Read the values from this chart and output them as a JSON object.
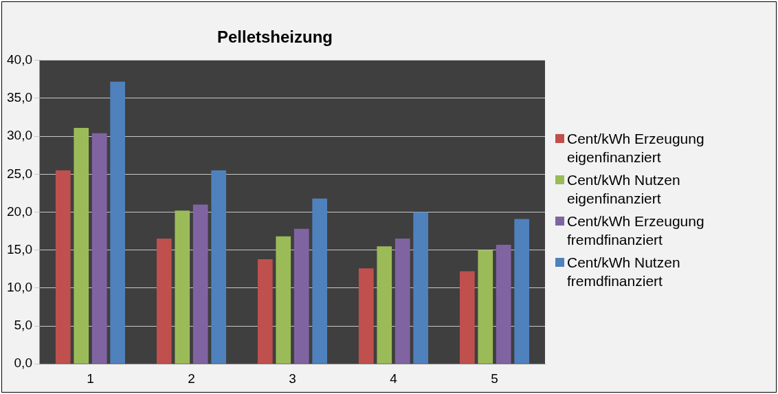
{
  "chart_data": {
    "type": "bar",
    "title": "Pelletsheizung",
    "categories": [
      "1",
      "2",
      "3",
      "4",
      "5"
    ],
    "series": [
      {
        "name": "Cent/kWh Erzeugung eigenfinanziert",
        "color": "#c0504d",
        "values": [
          25.5,
          16.5,
          13.8,
          12.6,
          12.2
        ]
      },
      {
        "name": "Cent/kWh Nutzen eigenfinanziert",
        "color": "#9bbb59",
        "values": [
          31.1,
          20.2,
          16.8,
          15.5,
          15.0
        ]
      },
      {
        "name": "Cent/kWh Erzeugung fremdfinanziert",
        "color": "#8064a2",
        "values": [
          30.4,
          21.0,
          17.8,
          16.5,
          15.7
        ]
      },
      {
        "name": "Cent/kWh Nutzen fremdfinanziert",
        "color": "#4f81bd",
        "values": [
          37.2,
          25.5,
          21.8,
          20.0,
          19.1
        ]
      }
    ],
    "ylim": [
      0,
      40
    ],
    "yticks": [
      {
        "value": 0,
        "label": "0,0"
      },
      {
        "value": 5,
        "label": "5,0"
      },
      {
        "value": 10,
        "label": "10,0"
      },
      {
        "value": 15,
        "label": "15,0"
      },
      {
        "value": 20,
        "label": "20,0"
      },
      {
        "value": 25,
        "label": "25,0"
      },
      {
        "value": 30,
        "label": "30,0"
      },
      {
        "value": 35,
        "label": "35,0"
      },
      {
        "value": 40,
        "label": "40,0"
      }
    ],
    "grid": "y",
    "legend": "right"
  }
}
